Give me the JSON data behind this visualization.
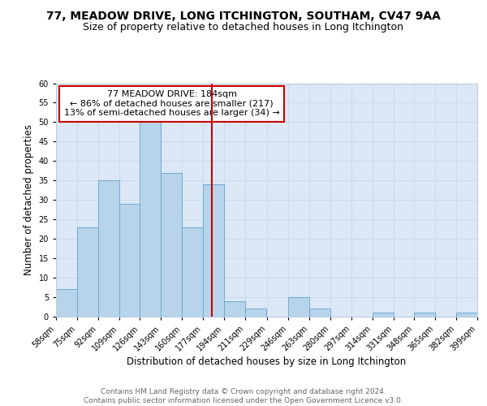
{
  "title": "77, MEADOW DRIVE, LONG ITCHINGTON, SOUTHAM, CV47 9AA",
  "subtitle": "Size of property relative to detached houses in Long Itchington",
  "xlabel": "Distribution of detached houses by size in Long Itchington",
  "ylabel": "Number of detached properties",
  "bins": [
    58,
    75,
    92,
    109,
    126,
    143,
    160,
    177,
    194,
    211,
    229,
    246,
    263,
    280,
    297,
    314,
    331,
    348,
    365,
    382,
    399
  ],
  "bin_labels": [
    "58sqm",
    "75sqm",
    "92sqm",
    "109sqm",
    "126sqm",
    "143sqm",
    "160sqm",
    "177sqm",
    "194sqm",
    "211sqm",
    "229sqm",
    "246sqm",
    "263sqm",
    "280sqm",
    "297sqm",
    "314sqm",
    "331sqm",
    "348sqm",
    "365sqm",
    "382sqm",
    "399sqm"
  ],
  "counts": [
    7,
    23,
    35,
    29,
    50,
    37,
    23,
    34,
    4,
    2,
    0,
    5,
    2,
    0,
    0,
    1,
    0,
    1,
    0,
    1
  ],
  "bar_color": "#b8d4ea",
  "bar_edgecolor": "#6aaad4",
  "property_size": 184,
  "vline_color": "#cc0000",
  "annotation_text": "77 MEADOW DRIVE: 184sqm\n← 86% of detached houses are smaller (217)\n13% of semi-detached houses are larger (34) →",
  "annotation_box_edgecolor": "#cc0000",
  "annotation_box_facecolor": "#ffffff",
  "ylim": [
    0,
    60
  ],
  "yticks": [
    0,
    5,
    10,
    15,
    20,
    25,
    30,
    35,
    40,
    45,
    50,
    55,
    60
  ],
  "grid_color": "#c8daea",
  "background_color": "#dce8f5",
  "footer_text": "Contains HM Land Registry data © Crown copyright and database right 2024.\nContains public sector information licensed under the Open Government Licence v3.0.",
  "title_fontsize": 10,
  "subtitle_fontsize": 9,
  "xlabel_fontsize": 8.5,
  "ylabel_fontsize": 8.5,
  "tick_fontsize": 7,
  "annotation_fontsize": 8,
  "footer_fontsize": 6.5
}
